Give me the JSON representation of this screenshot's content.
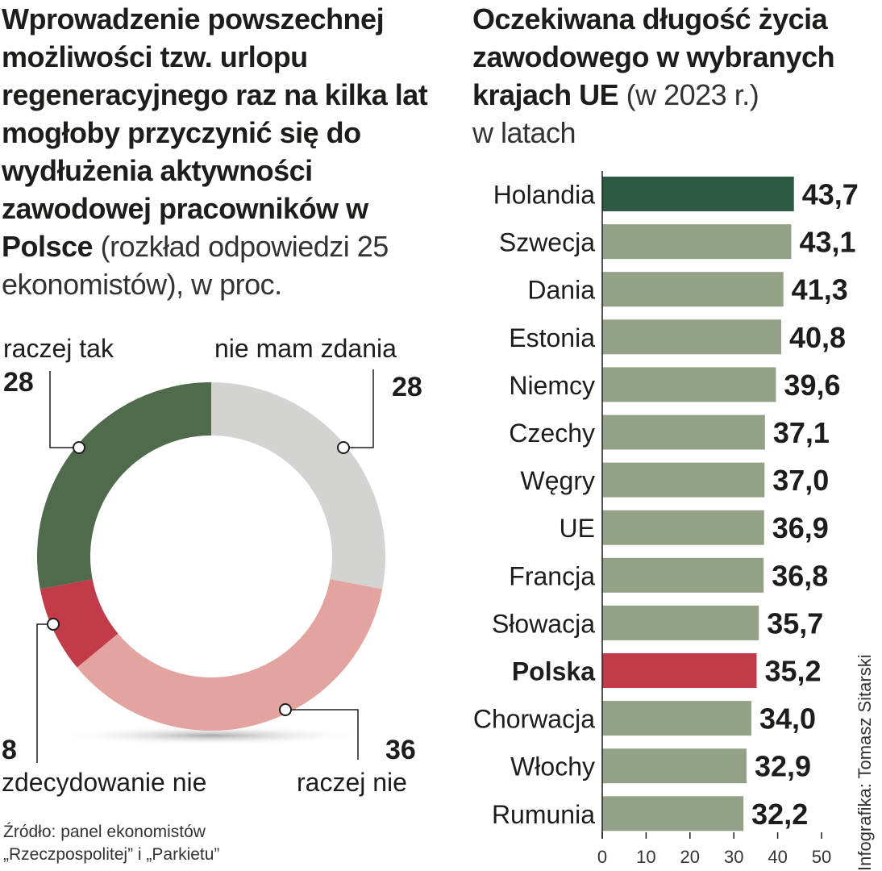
{
  "left": {
    "title_bold": "Wprowadzenie powszechnej możliwości tzw. urlopu regeneracyjnego raz na kilka lat mogłoby przyczynić się do wydłużenia aktywności zawodowej pracowników w Polsce",
    "title_light": "(rozkład odpowiedzi 25 ekonomistów), w proc.",
    "source_line1": "Źródło: panel ekonomistów",
    "source_line2": "„Rzeczpospolitej” i „Parkietu”"
  },
  "right": {
    "title_bold": "Oczekiwana długość życia zawodowego w wybranych krajach UE",
    "title_light": "(w 2023 r.)",
    "unit": "w latach",
    "credit": "Infografika: Tomasz Sitarski"
  },
  "chart_data": [
    {
      "type": "pie",
      "donut": true,
      "categories": [
        "raczej tak",
        "nie mam zdania",
        "raczej nie",
        "zdecydowanie nie"
      ],
      "values": [
        28,
        28,
        36,
        8
      ],
      "value_labels": [
        "28",
        "28",
        "36",
        "8"
      ],
      "colors": [
        "#4f6b4c",
        "#d3d3d2",
        "#e3a4a0",
        "#c23b48"
      ]
    },
    {
      "type": "bar",
      "orientation": "horizontal",
      "categories": [
        "Holandia",
        "Szwecja",
        "Dania",
        "Estonia",
        "Niemcy",
        "Czechy",
        "Węgry",
        "UE",
        "Francja",
        "Słowacja",
        "Polska",
        "Chorwacja",
        "Włochy",
        "Rumunia"
      ],
      "values": [
        43.7,
        43.1,
        41.3,
        40.8,
        39.6,
        37.1,
        37.0,
        36.9,
        36.8,
        35.7,
        35.2,
        34.0,
        32.9,
        32.2
      ],
      "value_labels": [
        "43,7",
        "43,1",
        "41,3",
        "40,8",
        "39,6",
        "37,1",
        "37,0",
        "36,9",
        "36,8",
        "35,7",
        "35,2",
        "34,0",
        "32,9",
        "32,2"
      ],
      "highlight": {
        "Holandia": "#2e5a44",
        "Polska": "#c23b48"
      },
      "default_color": "#93a186",
      "xlim": [
        0,
        50
      ],
      "xticks": [
        "0",
        "10",
        "20",
        "30",
        "40",
        "50"
      ]
    }
  ]
}
